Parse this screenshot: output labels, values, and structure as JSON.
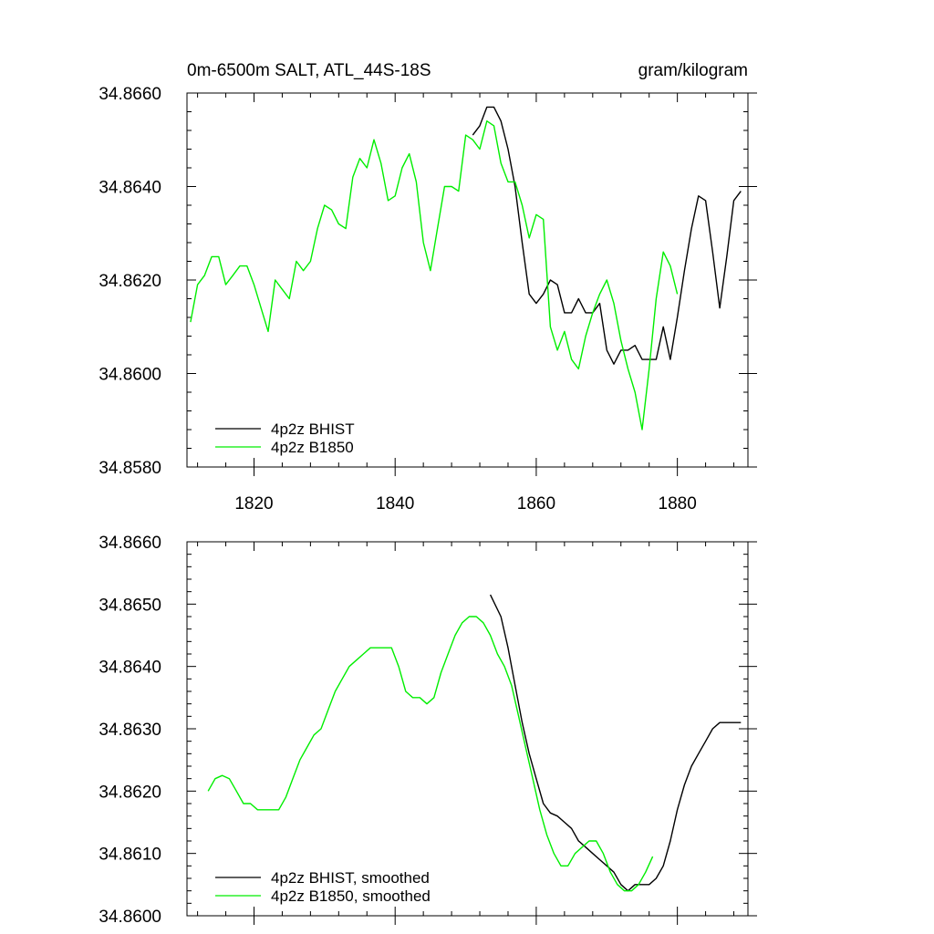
{
  "chart_data": [
    {
      "type": "line",
      "title_left": "0m-6500m SALT, ATL_44S-18S",
      "title_right": "gram/kilogram",
      "xlim": [
        1810.5,
        1890
      ],
      "ylim": [
        34.858,
        34.866
      ],
      "x_ticks": [
        1820,
        1840,
        1860,
        1880
      ],
      "x_tick_labels": [
        "1820",
        "1840",
        "1860",
        "1880"
      ],
      "y_ticks": [
        34.858,
        34.86,
        34.862,
        34.864,
        34.866
      ],
      "y_tick_labels": [
        "34.8580",
        "34.8600",
        "34.8620",
        "34.8640",
        "34.8660"
      ],
      "series": [
        {
          "name": "4p2z BHIST",
          "color": "#000000",
          "x": [
            1851,
            1852,
            1853,
            1854,
            1855,
            1856,
            1857,
            1858,
            1859,
            1860,
            1861,
            1862,
            1863,
            1864,
            1865,
            1866,
            1867,
            1868,
            1869,
            1870,
            1871,
            1872,
            1873,
            1874,
            1875,
            1876,
            1877,
            1878,
            1879,
            1880,
            1881,
            1882,
            1883,
            1884,
            1885,
            1886,
            1887,
            1888,
            1889
          ],
          "values": [
            34.8651,
            34.8653,
            34.8657,
            34.8657,
            34.8654,
            34.8648,
            34.864,
            34.8628,
            34.8617,
            34.8615,
            34.8617,
            34.862,
            34.8619,
            34.8613,
            34.8613,
            34.8616,
            34.8613,
            34.8613,
            34.8615,
            34.8605,
            34.8602,
            34.8605,
            34.8605,
            34.8606,
            34.8603,
            34.8603,
            34.8603,
            34.861,
            34.8603,
            34.8612,
            34.8622,
            34.8631,
            34.8638,
            34.8637,
            34.8626,
            34.8614,
            34.8625,
            34.8637,
            34.8639
          ]
        },
        {
          "name": "4p2z B1850",
          "color": "#00ee00",
          "x": [
            1811,
            1812,
            1813,
            1814,
            1815,
            1816,
            1817,
            1818,
            1819,
            1820,
            1821,
            1822,
            1823,
            1824,
            1825,
            1826,
            1827,
            1828,
            1829,
            1830,
            1831,
            1832,
            1833,
            1834,
            1835,
            1836,
            1837,
            1838,
            1839,
            1840,
            1841,
            1842,
            1843,
            1844,
            1845,
            1846,
            1847,
            1848,
            1849,
            1850,
            1851,
            1852,
            1853,
            1854,
            1855,
            1856,
            1857,
            1858,
            1859,
            1860,
            1861,
            1862,
            1863,
            1864,
            1865,
            1866,
            1867,
            1868,
            1869,
            1870,
            1871,
            1872,
            1873,
            1874,
            1875,
            1876,
            1877,
            1878,
            1879,
            1880
          ],
          "values": [
            34.8611,
            34.8619,
            34.8621,
            34.8625,
            34.8625,
            34.8619,
            34.8621,
            34.8623,
            34.8623,
            34.8619,
            34.8614,
            34.8609,
            34.862,
            34.8618,
            34.8616,
            34.8624,
            34.8622,
            34.8624,
            34.8631,
            34.8636,
            34.8635,
            34.8632,
            34.8631,
            34.8642,
            34.8646,
            34.8644,
            34.865,
            34.8645,
            34.8637,
            34.8638,
            34.8644,
            34.8647,
            34.8641,
            34.8628,
            34.8622,
            34.8631,
            34.864,
            34.864,
            34.8639,
            34.8651,
            34.865,
            34.8648,
            34.8654,
            34.8653,
            34.8645,
            34.8641,
            34.8641,
            34.8636,
            34.8629,
            34.8634,
            34.8633,
            34.861,
            34.8605,
            34.8609,
            34.8603,
            34.8601,
            34.8608,
            34.8613,
            34.8617,
            34.862,
            34.8615,
            34.8607,
            34.8601,
            34.8596,
            34.8588,
            34.8601,
            34.8616,
            34.8626,
            34.8623,
            34.8617
          ]
        }
      ]
    },
    {
      "type": "line",
      "xlim": [
        1810.5,
        1890
      ],
      "ylim": [
        34.86,
        34.866
      ],
      "x_ticks": [
        1820,
        1840,
        1860,
        1880
      ],
      "y_ticks": [
        34.86,
        34.861,
        34.862,
        34.863,
        34.864,
        34.865,
        34.866
      ],
      "y_tick_labels": [
        "34.8600",
        "34.8610",
        "34.8620",
        "34.8630",
        "34.8640",
        "34.8650",
        "34.8660"
      ],
      "series": [
        {
          "name": "4p2z BHIST, smoothed",
          "color": "#000000",
          "x": [
            1853.5,
            1855,
            1856,
            1857,
            1858,
            1859,
            1860,
            1861,
            1862,
            1863,
            1864,
            1865,
            1866,
            1867,
            1868,
            1869,
            1870,
            1871,
            1872,
            1873,
            1874,
            1875,
            1876,
            1877,
            1878,
            1879,
            1880,
            1881,
            1882,
            1883,
            1884,
            1885,
            1886,
            1887,
            1888,
            1889
          ],
          "values": [
            34.86515,
            34.8648,
            34.8643,
            34.8637,
            34.8631,
            34.8626,
            34.8622,
            34.8618,
            34.86165,
            34.8616,
            34.8615,
            34.8614,
            34.8612,
            34.8611,
            34.861,
            34.8609,
            34.8608,
            34.8607,
            34.8605,
            34.8604,
            34.8605,
            34.8605,
            34.8605,
            34.8606,
            34.8608,
            34.8612,
            34.8617,
            34.8621,
            34.8624,
            34.8626,
            34.8628,
            34.863,
            34.8631,
            34.8631,
            34.8631,
            34.8631
          ]
        },
        {
          "name": "4p2z B1850, smoothed",
          "color": "#00ee00",
          "x": [
            1813.5,
            1814.5,
            1815.5,
            1816.5,
            1817.5,
            1818.5,
            1819.5,
            1820.5,
            1821.5,
            1822.5,
            1823.5,
            1824.5,
            1825.5,
            1826.5,
            1827.5,
            1828.5,
            1829.5,
            1830.5,
            1831.5,
            1832.5,
            1833.5,
            1834.5,
            1835.5,
            1836.5,
            1837.5,
            1838.5,
            1839.5,
            1840.5,
            1841.5,
            1842.5,
            1843.5,
            1844.5,
            1845.5,
            1846.5,
            1847.5,
            1848.5,
            1849.5,
            1850.5,
            1851.5,
            1852.5,
            1853.5,
            1854.5,
            1855.5,
            1856.5,
            1857.5,
            1858.5,
            1859.5,
            1860.5,
            1861.5,
            1862.5,
            1863.5,
            1864.5,
            1865.5,
            1866.5,
            1867.5,
            1868.5,
            1869.5,
            1870.5,
            1871.5,
            1872.5,
            1873.5,
            1874.5,
            1875.5,
            1876.5
          ],
          "values": [
            34.862,
            34.8622,
            34.86225,
            34.8622,
            34.862,
            34.8618,
            34.8618,
            34.8617,
            34.8617,
            34.8617,
            34.8617,
            34.8619,
            34.8622,
            34.8625,
            34.8627,
            34.8629,
            34.863,
            34.8633,
            34.8636,
            34.8638,
            34.864,
            34.8641,
            34.8642,
            34.8643,
            34.8643,
            34.8643,
            34.8643,
            34.864,
            34.8636,
            34.8635,
            34.8635,
            34.8634,
            34.8635,
            34.8639,
            34.8642,
            34.8645,
            34.8647,
            34.8648,
            34.8648,
            34.8647,
            34.8645,
            34.8642,
            34.864,
            34.8637,
            34.8632,
            34.8627,
            34.8622,
            34.8617,
            34.8613,
            34.861,
            34.8608,
            34.8608,
            34.861,
            34.8611,
            34.8612,
            34.8612,
            34.861,
            34.8607,
            34.8605,
            34.8604,
            34.8604,
            34.8605,
            34.8607,
            34.86095
          ]
        }
      ]
    }
  ]
}
